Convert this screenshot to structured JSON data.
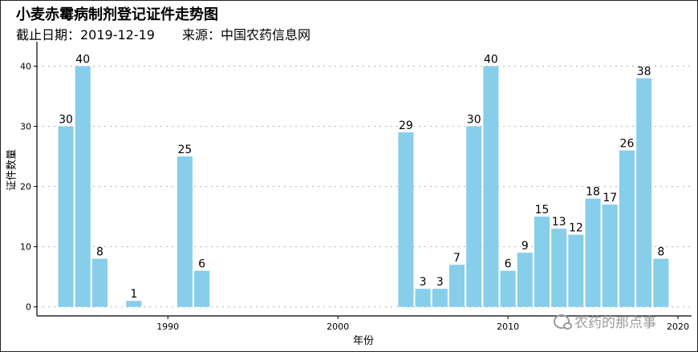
{
  "header": {
    "title": "小麦赤霉病制剂登记证件走势图",
    "date_label": "截止日期：2019-12-19",
    "source_label": "来源：中国农药信息网"
  },
  "watermark": {
    "text": "农药的那点事"
  },
  "chart_data": {
    "type": "bar",
    "title": "小麦赤霉病制剂登记证件走势图",
    "xlabel": "年份",
    "ylabel": "证件数量",
    "x": [
      1984,
      1985,
      1986,
      1988,
      1991,
      1992,
      2004,
      2005,
      2006,
      2007,
      2008,
      2009,
      2010,
      2011,
      2012,
      2013,
      2014,
      2015,
      2016,
      2017,
      2018,
      2019
    ],
    "values": [
      30,
      40,
      8,
      1,
      25,
      6,
      29,
      3,
      3,
      7,
      30,
      40,
      6,
      9,
      15,
      13,
      12,
      18,
      17,
      26,
      38,
      8
    ],
    "xlim": [
      1982.3,
      2020.8
    ],
    "ylim": [
      -1.5,
      43
    ],
    "xticks": [
      1990,
      2000,
      2010,
      2020
    ],
    "yticks": [
      0,
      10,
      20,
      30,
      40
    ],
    "grid": "y-dotted",
    "bar_color": "#87ceeb"
  }
}
